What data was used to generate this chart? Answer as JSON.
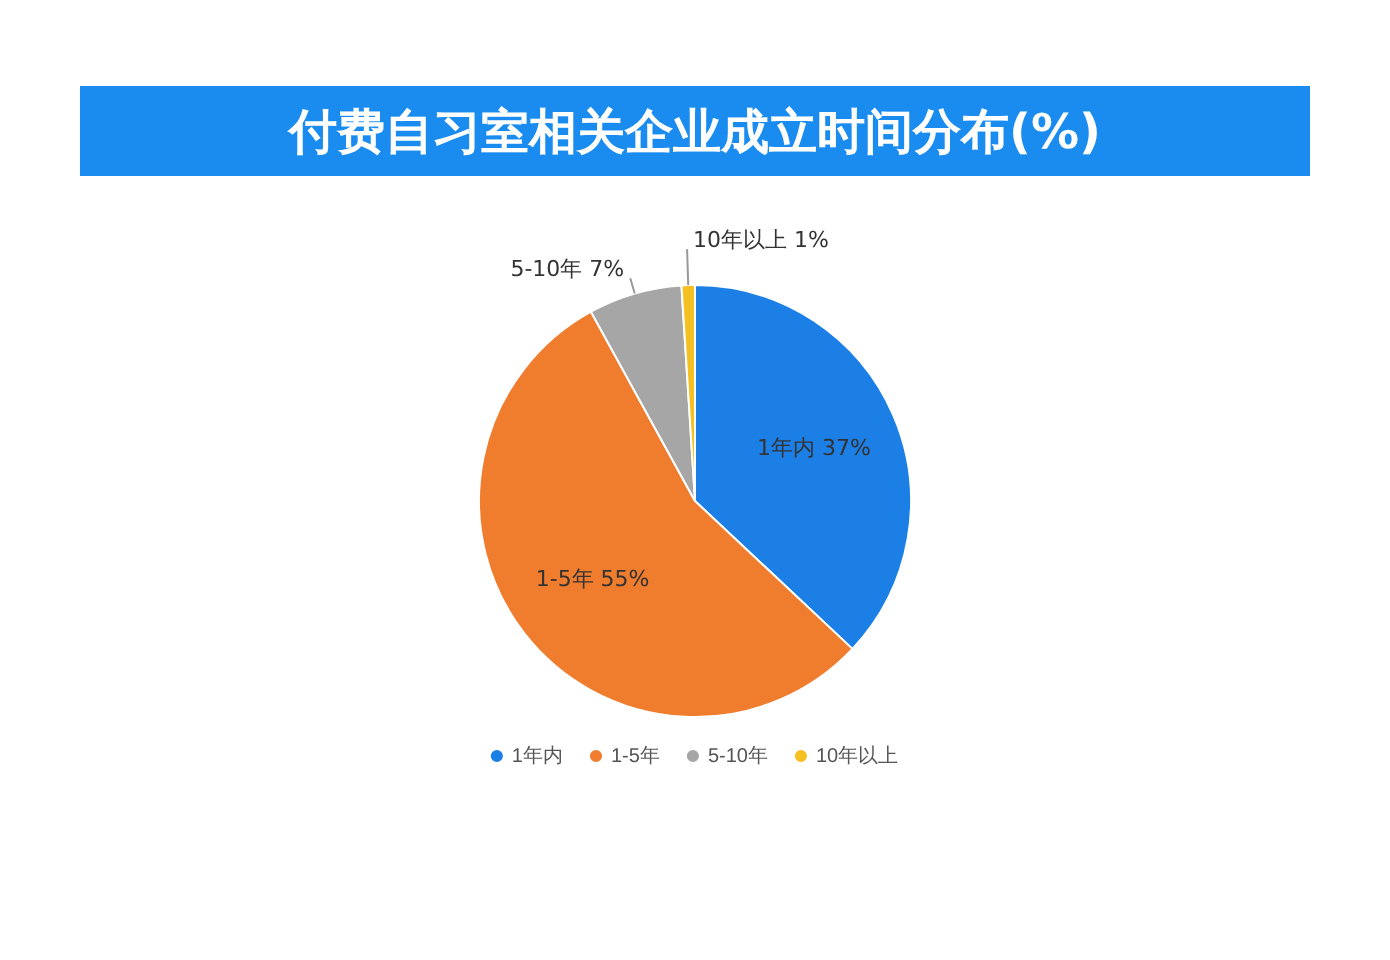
{
  "chart_data": {
    "type": "pie",
    "title": "付费自习室相关企业成立时间分布(%)",
    "categories": [
      "1年内",
      "1-5年",
      "5-10年",
      "10年以上"
    ],
    "values": [
      37,
      55,
      7,
      1
    ],
    "value_labels": [
      "37%",
      "55%",
      "7%",
      "1%"
    ],
    "colors": [
      "#1c7fe6",
      "#f07c2e",
      "#a6a6a6",
      "#f5c022"
    ],
    "legend": "bottom"
  }
}
